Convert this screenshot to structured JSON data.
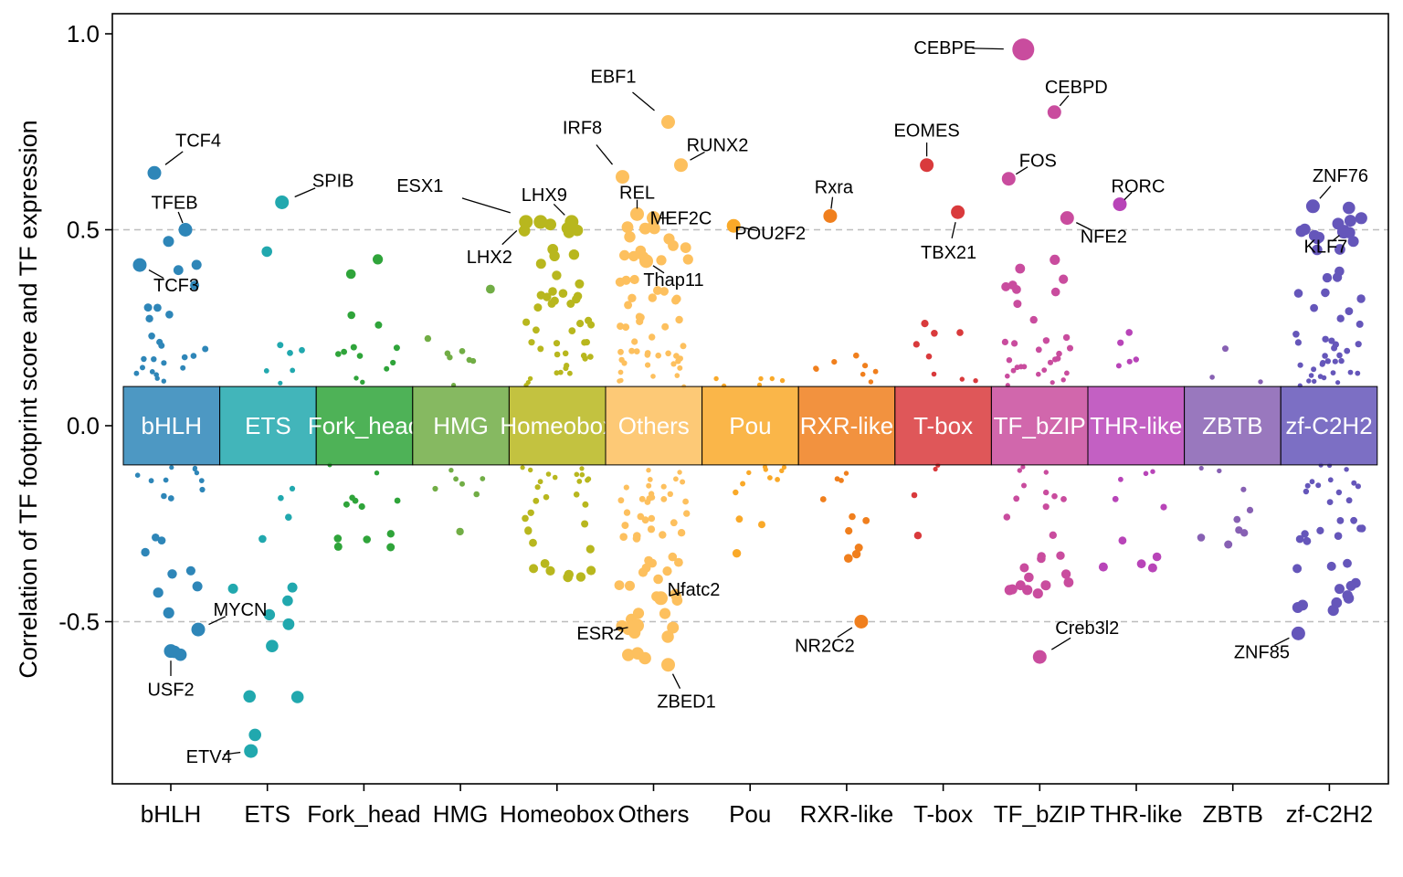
{
  "chart_data": {
    "type": "scatter",
    "ylabel": "Correlation of TF footprint score and TF expression",
    "xlabel": "",
    "ylim": [
      -0.92,
      1.05
    ],
    "yticks": [
      "-0.5",
      "0.0",
      "0.5",
      "1.0"
    ],
    "ytick_values": [
      -0.5,
      0,
      0.5,
      1.0
    ],
    "reference_lines": [
      0.5,
      -0.5
    ],
    "grid": false,
    "legend": "none",
    "categories": [
      "bHLH",
      "ETS",
      "Fork_head",
      "HMG",
      "Homeobox",
      "Others",
      "Pou",
      "RXR-like",
      "T-box",
      "TF_bZIP",
      "THR-like",
      "ZBTB",
      "zf-C2H2"
    ],
    "colors": [
      "#2E86B8",
      "#21A8AE",
      "#2FA43A",
      "#71AD45",
      "#B8B71E",
      "#FDC05E",
      "#F9A929",
      "#F07F1D",
      "#D93A3C",
      "#C94C9E",
      "#B844B8",
      "#8760B3",
      "#6556BA"
    ],
    "labeled_points": [
      {
        "name": "TCF4",
        "category": "bHLH",
        "y": 0.645
      },
      {
        "name": "TFEB",
        "category": "bHLH",
        "y": 0.5
      },
      {
        "name": "TCF3",
        "category": "bHLH",
        "y": 0.41
      },
      {
        "name": "MYCN",
        "category": "bHLH",
        "y": -0.52
      },
      {
        "name": "USF2",
        "category": "bHLH",
        "y": -0.575
      },
      {
        "name": "ETV4",
        "category": "ETS",
        "y": -0.83
      },
      {
        "name": "SPIB",
        "category": "ETS",
        "y": 0.57
      },
      {
        "name": "ESX1",
        "category": "Homeobox",
        "y": 0.52
      },
      {
        "name": "LHX9",
        "category": "Homeobox",
        "y": 0.52
      },
      {
        "name": "LHX2",
        "category": "Homeobox",
        "y": 0.52
      },
      {
        "name": "REL",
        "category": "Others",
        "y": 0.54
      },
      {
        "name": "EBF1",
        "category": "Others",
        "y": 0.775
      },
      {
        "name": "IRF8",
        "category": "Others",
        "y": 0.635
      },
      {
        "name": "RUNX2",
        "category": "Others",
        "y": 0.665
      },
      {
        "name": "MEF2C",
        "category": "Others",
        "y": 0.53
      },
      {
        "name": "Thap11",
        "category": "Others",
        "y": 0.42
      },
      {
        "name": "Nfatc2",
        "category": "Others",
        "y": -0.44
      },
      {
        "name": "ESR2",
        "category": "Others",
        "y": -0.51
      },
      {
        "name": "ZBED1",
        "category": "Others",
        "y": -0.61
      },
      {
        "name": "POU2F2",
        "category": "Pou",
        "y": 0.51
      },
      {
        "name": "Rxra",
        "category": "RXR-like",
        "y": 0.535
      },
      {
        "name": "NR2C2",
        "category": "RXR-like",
        "y": -0.5
      },
      {
        "name": "EOMES",
        "category": "T-box",
        "y": 0.665
      },
      {
        "name": "TBX21",
        "category": "T-box",
        "y": 0.545
      },
      {
        "name": "CEBPE",
        "category": "TF_bZIP",
        "y": 0.96
      },
      {
        "name": "CEBPD",
        "category": "TF_bZIP",
        "y": 0.8
      },
      {
        "name": "FOS",
        "category": "TF_bZIP",
        "y": 0.63
      },
      {
        "name": "NFE2",
        "category": "TF_bZIP",
        "y": 0.53
      },
      {
        "name": "Creb3l2",
        "category": "TF_bZIP",
        "y": -0.59
      },
      {
        "name": "RORC",
        "category": "THR-like",
        "y": 0.565
      },
      {
        "name": "ZNF76",
        "category": "zf-C2H2",
        "y": 0.56
      },
      {
        "name": "KLF7",
        "category": "zf-C2H2",
        "y": 0.495
      },
      {
        "name": "ZNF85",
        "category": "zf-C2H2",
        "y": -0.53
      }
    ]
  }
}
